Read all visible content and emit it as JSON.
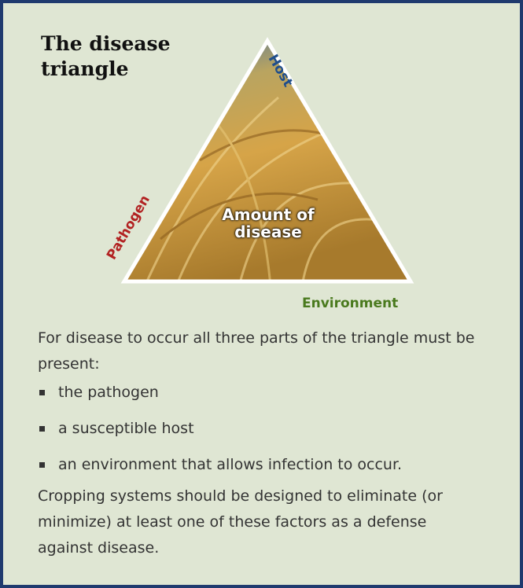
{
  "title": "The disease triangle",
  "triangle": {
    "top_label": "Host",
    "left_label": "Pathogen",
    "bottom_label": "Environment",
    "center": "Amount of disease"
  },
  "intro": "For disease to occur all three parts of the triangle must be present:",
  "bullets": [
    "the pathogen",
    "a susceptible host",
    "an environment that allows infection to occur."
  ],
  "conclusion": "Cropping systems should be designed to eliminate (or minimize) at least one of these factors as a defense against disease."
}
